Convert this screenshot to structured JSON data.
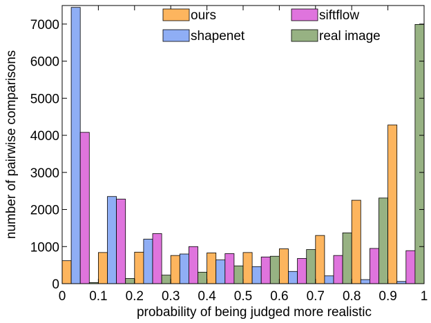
{
  "chart_data": {
    "type": "bar",
    "xlabel": "probability of being judged more realistic",
    "ylabel": "number of pairwise comparisons",
    "xlim": [
      0,
      1
    ],
    "ylim": [
      0,
      7500
    ],
    "x_ticks": [
      "0",
      "0.1",
      "0.2",
      "0.3",
      "0.4",
      "0.5",
      "0.6",
      "0.7",
      "0.8",
      "0.9",
      "1"
    ],
    "y_ticks": [
      "0",
      "1000",
      "2000",
      "3000",
      "4000",
      "5000",
      "6000",
      "7000"
    ],
    "grid": false,
    "legend_position": "top-center",
    "bins": [
      0.0,
      0.1,
      0.2,
      0.3,
      0.4,
      0.5,
      0.6,
      0.7,
      0.8,
      0.9
    ],
    "bin_width": 0.1,
    "series": [
      {
        "name": "ours",
        "color": "#FDB55E",
        "values": [
          620,
          840,
          850,
          760,
          830,
          840,
          940,
          1300,
          2250,
          4280
        ]
      },
      {
        "name": "shapenet",
        "color": "#8FAEF5",
        "values": [
          7450,
          2350,
          1200,
          800,
          640,
          460,
          330,
          210,
          110,
          60
        ]
      },
      {
        "name": "siftflow",
        "color": "#DF74DD",
        "values": [
          4080,
          2280,
          1350,
          1000,
          810,
          720,
          680,
          760,
          950,
          890
        ]
      },
      {
        "name": "real image",
        "color": "#97B283",
        "values": [
          30,
          140,
          230,
          310,
          480,
          740,
          920,
          1370,
          2310,
          6990
        ]
      }
    ]
  }
}
